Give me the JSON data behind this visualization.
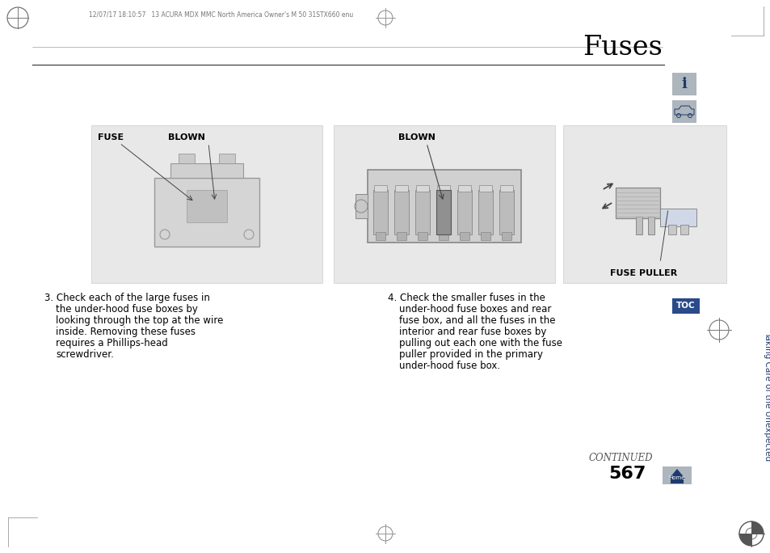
{
  "page_bg": "#ffffff",
  "title": "Fuses",
  "header_text": "12/07/17 18:10:57   13 ACURA MDX MMC North America Owner's M 50 31STX660 enu",
  "page_number": "567",
  "continued_text": "CONTINUED",
  "sidebar_text": "Taking Care of the Unexpected",
  "toc_label": "TOC",
  "panel1_label_fuse": "FUSE",
  "panel1_label_blown": "BLOWN",
  "panel2_label_blown": "BLOWN",
  "panel3_label": "FUSE PULLER",
  "text3_lines": [
    "3. Check each of the large fuses in",
    "the under-hood fuse boxes by",
    "looking through the top at the wire",
    "inside. Removing these fuses",
    "requires a Phillips-head",
    "screwdriver."
  ],
  "text4_lines": [
    "4. Check the smaller fuses in the",
    "under-hood fuse boxes and rear",
    "fuse box, and all the fuses in the",
    "interior and rear fuse boxes by",
    "pulling out each one with the fuse",
    "puller provided in the primary",
    "under-hood fuse box."
  ],
  "panel_bg": "#e8e8e8",
  "blue_color": "#1e3a6e",
  "toc_bg": "#2a4a8a",
  "icon_bg": "#adb5bd",
  "label_fontsize": 8.0,
  "body_fontsize": 8.5,
  "title_fontsize": 24
}
